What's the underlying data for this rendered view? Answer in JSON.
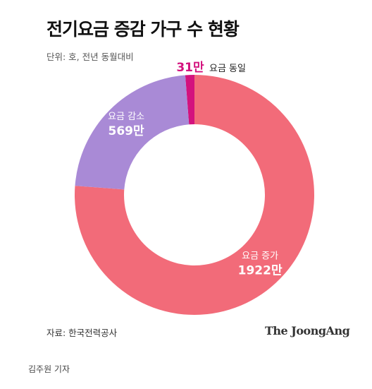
{
  "title": "전기요금 증감 가구 수 현황",
  "unit_note": "단위: 호, 전년 동월대비",
  "source": "자료: 한국전력공사",
  "brand": "The JoongAng",
  "byline": "김주원 기자",
  "chart_data": {
    "type": "pie",
    "donut": true,
    "unit": "만 호",
    "slices": [
      {
        "name": "요금 동일",
        "value": 31,
        "label": "31만",
        "color": "#d3127e"
      },
      {
        "name": "요금 증가",
        "value": 1922,
        "label": "1922만",
        "color": "#f26b79"
      },
      {
        "name": "요금 감소",
        "value": 569,
        "label": "569만",
        "color": "#a98ad6"
      }
    ]
  }
}
